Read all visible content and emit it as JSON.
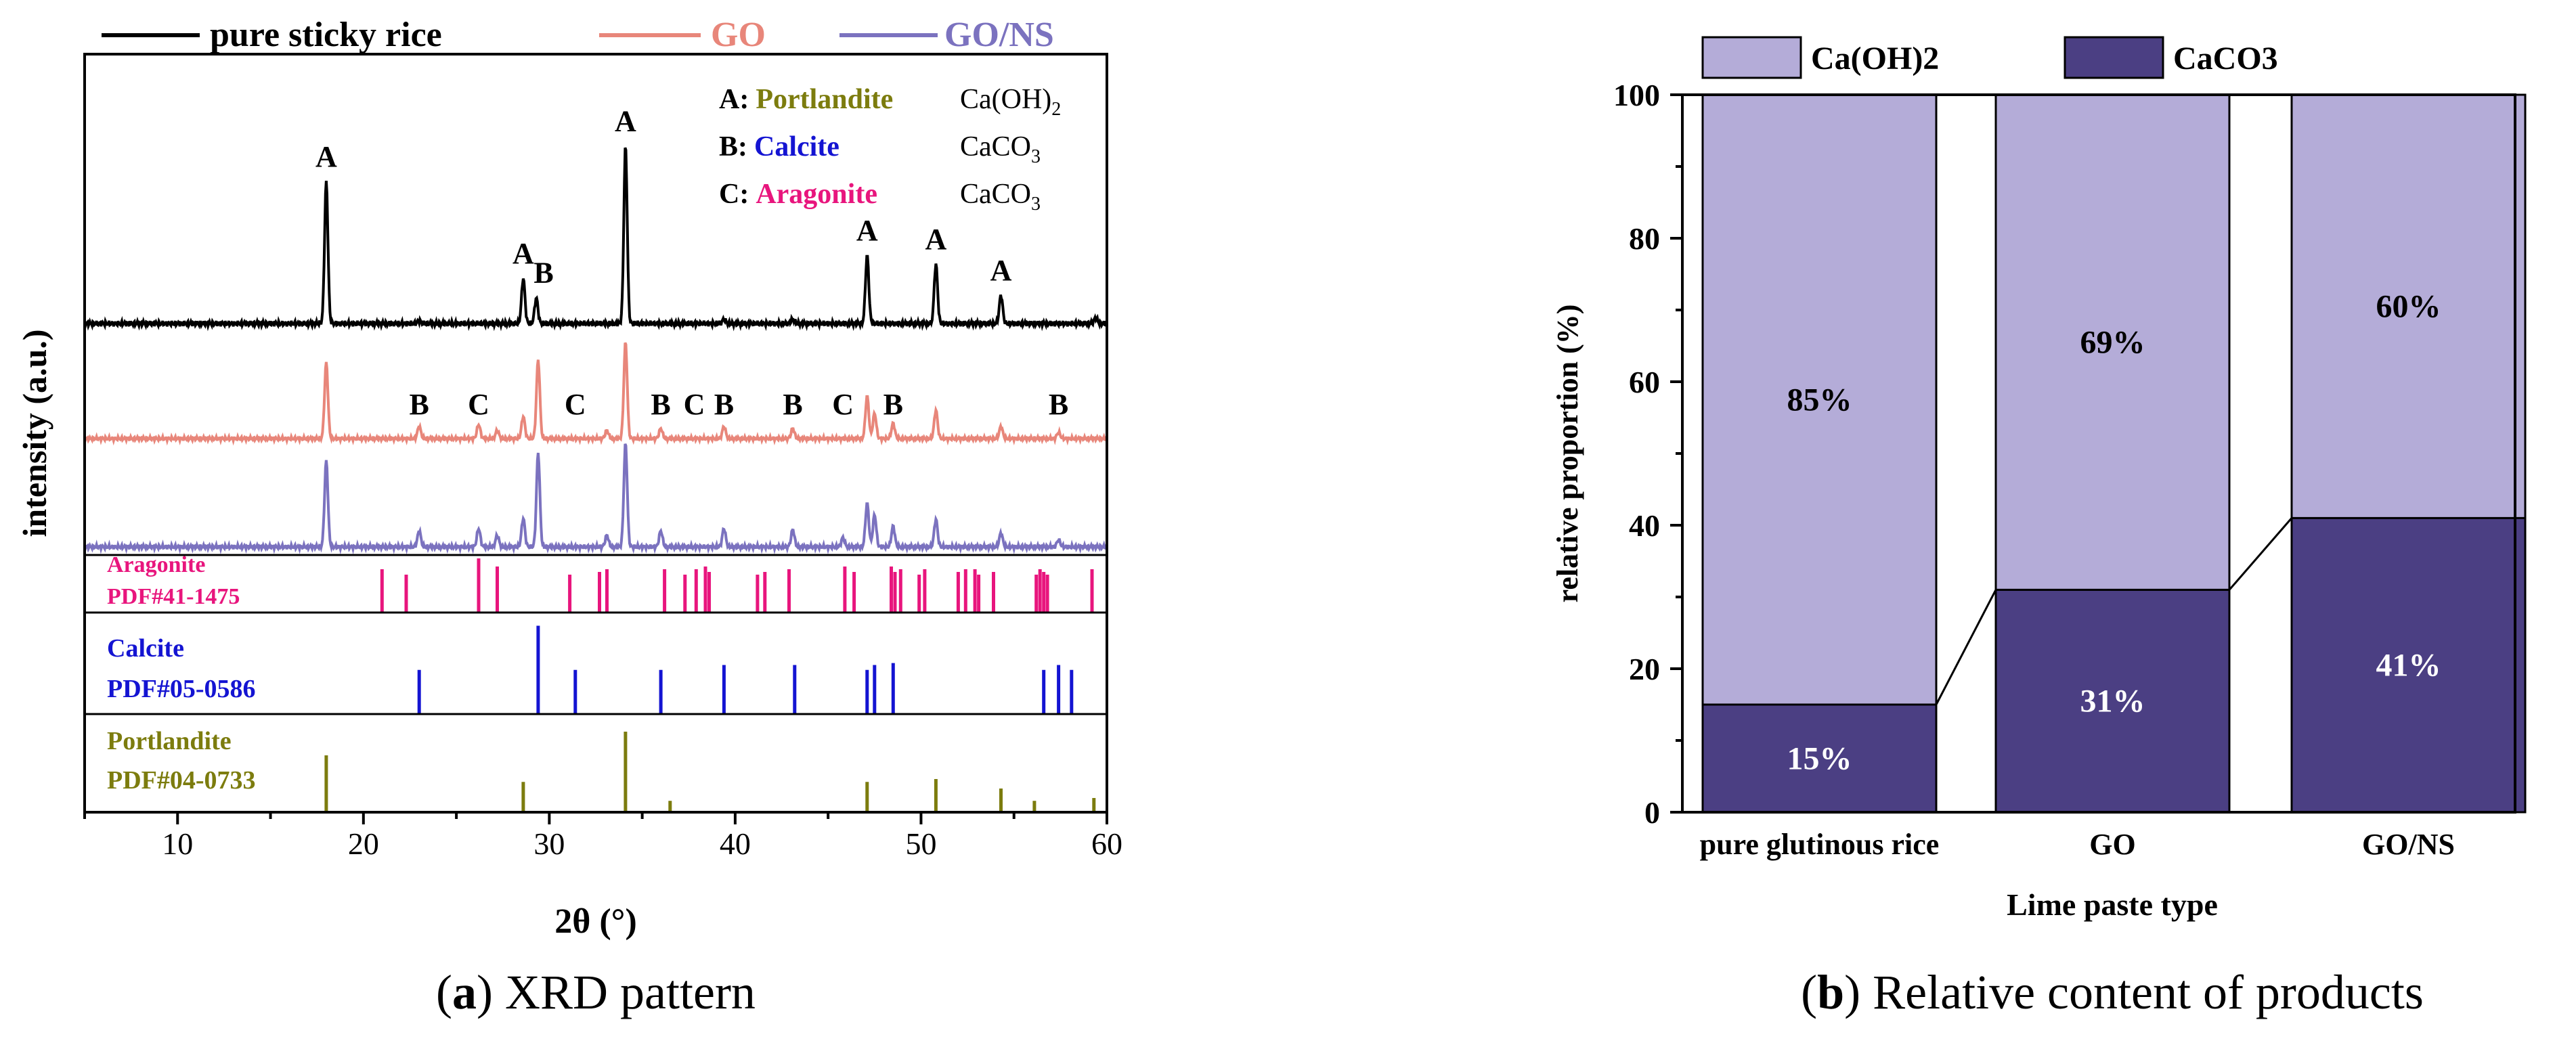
{
  "chart_data": [
    {
      "type": "line",
      "panel_label": "a",
      "caption": "XRD pattern",
      "xlabel": "2θ (°)",
      "ylabel": "intensity  (a.u.)",
      "xlim": [
        5,
        60
      ],
      "xticks": [
        10,
        20,
        30,
        40,
        50,
        60
      ],
      "legend": [
        {
          "name": "pure sticky rice",
          "color": "#000000"
        },
        {
          "name": "GO",
          "color": "#e8867a"
        },
        {
          "name": "GO/NS",
          "color": "#7b72bf"
        }
      ],
      "phase_legend": [
        {
          "letter": "A:",
          "name": "Portlandite",
          "formula": "Ca(OH)",
          "sub": "2",
          "color": "#7c7c0e"
        },
        {
          "letter": "B:",
          "name": "Calcite",
          "formula": "CaCO",
          "sub": "3",
          "color": "#1414d2"
        },
        {
          "letter": "C:",
          "name": "Aragonite",
          "formula": "CaCO",
          "sub": "3",
          "color": "#e8157d"
        }
      ],
      "series": [
        {
          "name": "pure sticky rice",
          "color": "#000000",
          "peaks": [
            [
              18.0,
              1.0
            ],
            [
              28.6,
              0.32
            ],
            [
              29.3,
              0.18
            ],
            [
              34.1,
              1.25
            ],
            [
              47.1,
              0.48
            ],
            [
              50.8,
              0.42
            ],
            [
              54.3,
              0.2
            ],
            [
              39.4,
              0.03
            ],
            [
              43.1,
              0.03
            ],
            [
              59.4,
              0.04
            ],
            [
              23.0,
              0.02
            ]
          ],
          "annotations": [
            {
              "x": 18.0,
              "label": "A",
              "row": "top"
            },
            {
              "x": 28.6,
              "label": "A",
              "row": "top"
            },
            {
              "x": 29.7,
              "label": "B",
              "row": "top"
            },
            {
              "x": 34.1,
              "label": "A",
              "row": "top"
            },
            {
              "x": 47.1,
              "label": "A",
              "row": "top"
            },
            {
              "x": 50.8,
              "label": "A",
              "row": "top"
            },
            {
              "x": 54.3,
              "label": "A",
              "row": "top"
            }
          ]
        },
        {
          "name": "GO",
          "color": "#e8867a",
          "peaks": [
            [
              18.0,
              0.75
            ],
            [
              23.0,
              0.12
            ],
            [
              26.2,
              0.14
            ],
            [
              27.2,
              0.08
            ],
            [
              28.6,
              0.22
            ],
            [
              29.4,
              0.78
            ],
            [
              33.1,
              0.08
            ],
            [
              34.1,
              0.95
            ],
            [
              36.0,
              0.1
            ],
            [
              39.4,
              0.12
            ],
            [
              43.1,
              0.1
            ],
            [
              47.1,
              0.42
            ],
            [
              47.5,
              0.25
            ],
            [
              48.5,
              0.15
            ],
            [
              50.8,
              0.28
            ],
            [
              54.3,
              0.12
            ],
            [
              57.4,
              0.06
            ]
          ],
          "annotations": [
            {
              "x": 23.0,
              "label": "B"
            },
            {
              "x": 26.2,
              "label": "C"
            },
            {
              "x": 31.4,
              "label": "C"
            },
            {
              "x": 36.0,
              "label": "B"
            },
            {
              "x": 37.8,
              "label": "C"
            },
            {
              "x": 39.4,
              "label": "B"
            },
            {
              "x": 43.1,
              "label": "B"
            },
            {
              "x": 45.8,
              "label": "C"
            },
            {
              "x": 48.5,
              "label": "B"
            },
            {
              "x": 57.4,
              "label": "B"
            }
          ]
        },
        {
          "name": "GO/NS",
          "color": "#7b72bf",
          "peaks": [
            [
              18.0,
              0.75
            ],
            [
              23.0,
              0.14
            ],
            [
              26.2,
              0.16
            ],
            [
              27.2,
              0.1
            ],
            [
              28.6,
              0.25
            ],
            [
              29.4,
              0.82
            ],
            [
              33.1,
              0.1
            ],
            [
              34.1,
              0.9
            ],
            [
              36.0,
              0.14
            ],
            [
              39.4,
              0.16
            ],
            [
              43.1,
              0.15
            ],
            [
              45.8,
              0.08
            ],
            [
              47.1,
              0.38
            ],
            [
              47.5,
              0.28
            ],
            [
              48.5,
              0.18
            ],
            [
              50.8,
              0.24
            ],
            [
              54.3,
              0.12
            ],
            [
              57.4,
              0.06
            ]
          ]
        }
      ],
      "references": [
        {
          "name": "Aragonite",
          "pdf": "PDF#41-1475",
          "color": "#e8157d",
          "sticks": [
            [
              21.0,
              0.8
            ],
            [
              22.3,
              0.7
            ],
            [
              26.2,
              1.0
            ],
            [
              27.2,
              0.85
            ],
            [
              31.1,
              0.7
            ],
            [
              32.7,
              0.75
            ],
            [
              33.1,
              0.8
            ],
            [
              36.2,
              0.8
            ],
            [
              37.3,
              0.7
            ],
            [
              37.9,
              0.8
            ],
            [
              38.4,
              0.85
            ],
            [
              38.6,
              0.75
            ],
            [
              41.2,
              0.7
            ],
            [
              41.6,
              0.75
            ],
            [
              42.9,
              0.8
            ],
            [
              45.9,
              0.85
            ],
            [
              46.4,
              0.75
            ],
            [
              48.4,
              0.85
            ],
            [
              48.6,
              0.75
            ],
            [
              48.9,
              0.8
            ],
            [
              49.9,
              0.7
            ],
            [
              50.2,
              0.8
            ],
            [
              52.0,
              0.75
            ],
            [
              52.4,
              0.8
            ],
            [
              52.9,
              0.8
            ],
            [
              53.1,
              0.7
            ],
            [
              53.9,
              0.75
            ],
            [
              56.2,
              0.7
            ],
            [
              56.4,
              0.8
            ],
            [
              56.6,
              0.75
            ],
            [
              56.8,
              0.7
            ],
            [
              59.2,
              0.8
            ]
          ]
        },
        {
          "name": "Calcite",
          "pdf": "PDF#05-0586",
          "color": "#1414d2",
          "sticks": [
            [
              23.0,
              0.45
            ],
            [
              29.4,
              0.9
            ],
            [
              31.4,
              0.45
            ],
            [
              36.0,
              0.45
            ],
            [
              39.4,
              0.5
            ],
            [
              43.2,
              0.5
            ],
            [
              47.1,
              0.45
            ],
            [
              47.5,
              0.5
            ],
            [
              48.5,
              0.52
            ],
            [
              56.6,
              0.45
            ],
            [
              57.4,
              0.5
            ],
            [
              58.1,
              0.45
            ]
          ]
        },
        {
          "name": "Portlandite",
          "pdf": "PDF#04-0733",
          "color": "#7c7c0e",
          "sticks": [
            [
              18.0,
              0.6
            ],
            [
              28.6,
              0.32
            ],
            [
              34.1,
              0.85
            ],
            [
              36.5,
              0.12
            ],
            [
              47.1,
              0.32
            ],
            [
              50.8,
              0.35
            ],
            [
              54.3,
              0.25
            ],
            [
              56.1,
              0.12
            ],
            [
              59.3,
              0.15
            ]
          ]
        }
      ]
    },
    {
      "type": "bar",
      "stacked": true,
      "panel_label": "b",
      "caption": "Relative content of products",
      "xlabel": "Lime paste type",
      "ylabel": "relative proportion (%)",
      "ylim": [
        0,
        100
      ],
      "yticks": [
        0,
        20,
        40,
        60,
        80,
        100
      ],
      "categories": [
        "pure glutinous rice",
        "GO",
        "GO/NS"
      ],
      "series": [
        {
          "name": "CaCO3",
          "color": "#4b3f83",
          "values": [
            15,
            31,
            41
          ],
          "labels": [
            "15%",
            "31%",
            "41%"
          ],
          "label_color": "#ffffff"
        },
        {
          "name": "Ca(OH)2",
          "color": "#b4acd8",
          "values": [
            85,
            69,
            60
          ],
          "labels": [
            "85%",
            "69%",
            "60%"
          ],
          "label_color": "#000000"
        }
      ],
      "legend": [
        "Ca(OH)2",
        "CaCO3"
      ]
    }
  ]
}
